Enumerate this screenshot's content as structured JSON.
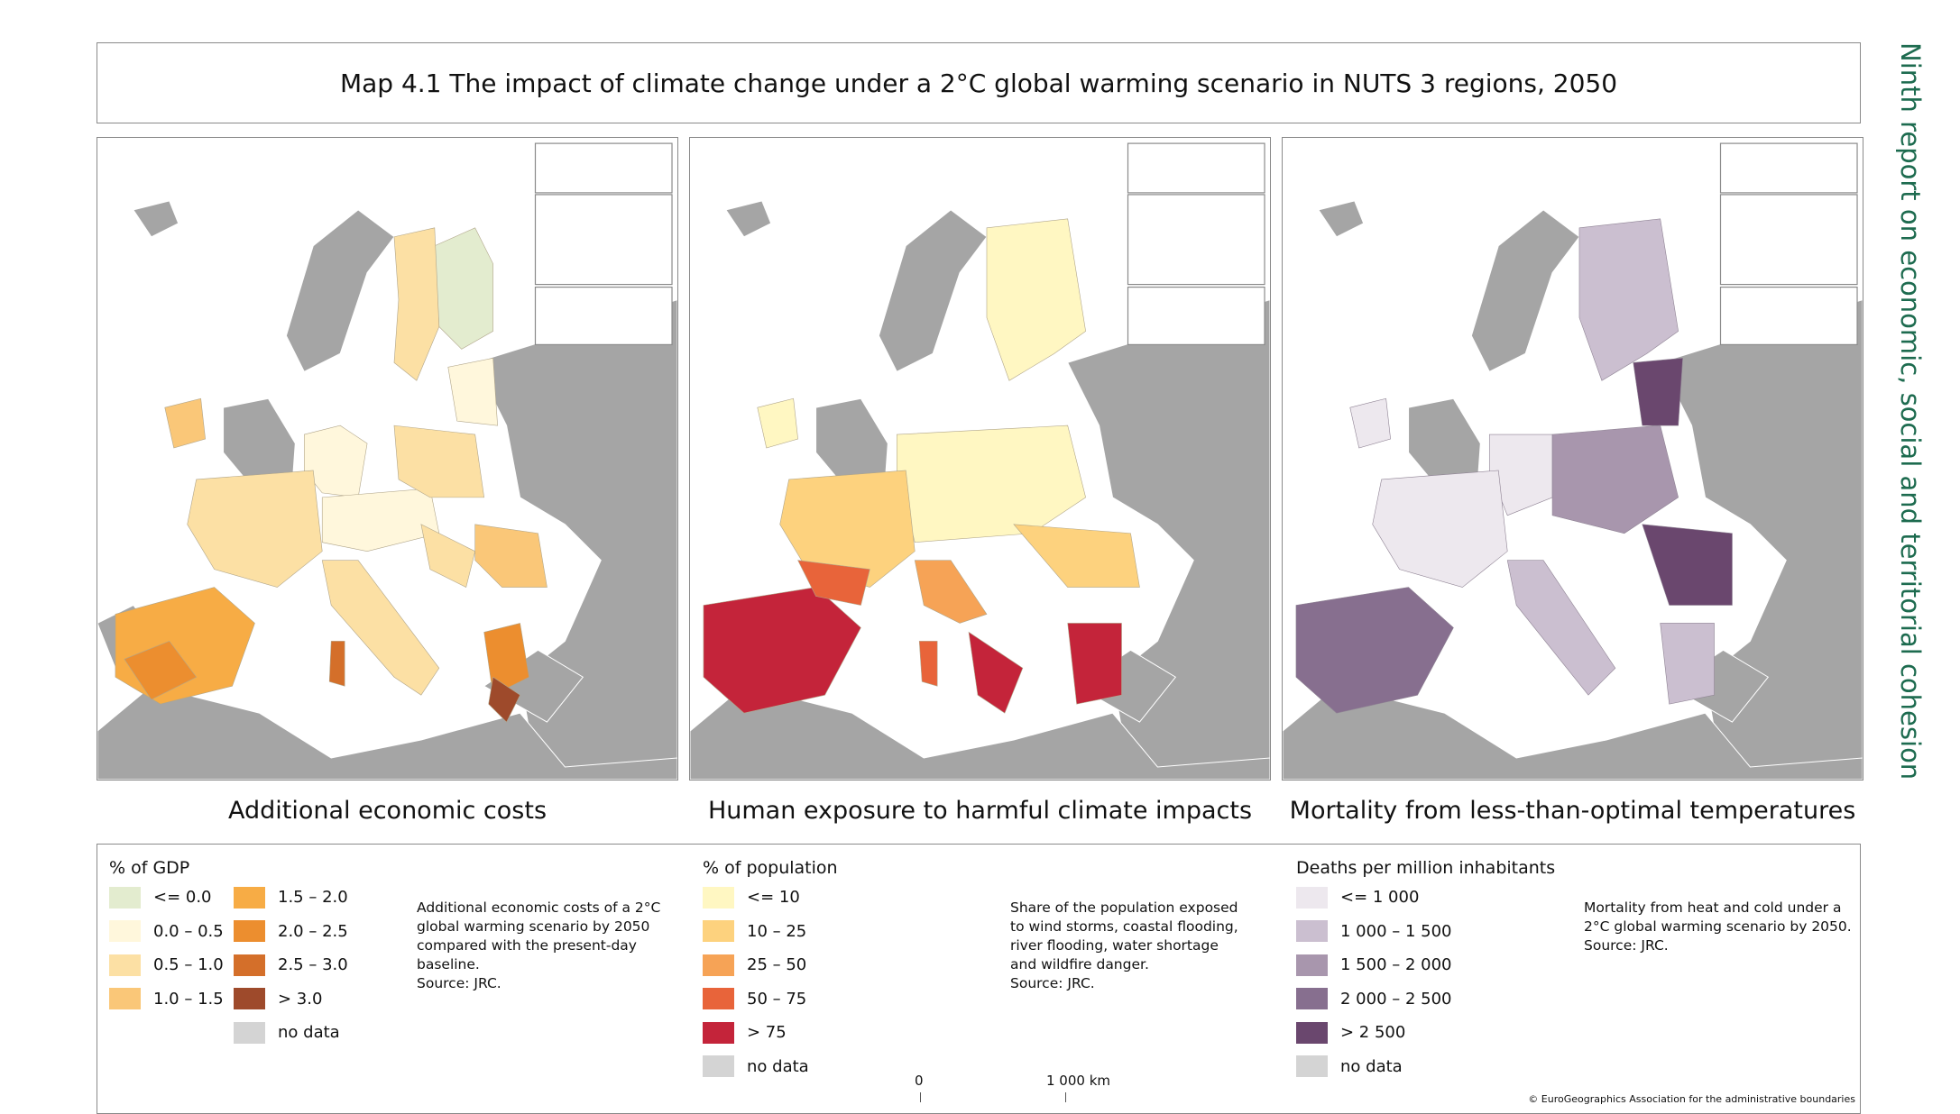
{
  "title": "Map 4.1 The impact of climate change under a 2°C global warming scenario in NUTS 3 regions, 2050",
  "side_title": "Ninth report on economic, social and territorial cohesion",
  "panels": [
    {
      "title": "Additional economic costs",
      "legend_title": "% of GDP",
      "legend_items": [
        {
          "label": "<= 0.0",
          "color": "#e3eccf"
        },
        {
          "label": "0.0 – 0.5",
          "color": "#fff7dc"
        },
        {
          "label": "0.5 – 1.0",
          "color": "#fce0a4"
        },
        {
          "label": "1.0 – 1.5",
          "color": "#fac778"
        },
        {
          "label": "1.5 – 2.0",
          "color": "#f7ac45"
        },
        {
          "label": "2.0 – 2.5",
          "color": "#ec8e2f"
        },
        {
          "label": "2.5 – 3.0",
          "color": "#d46f2a"
        },
        {
          "label": "> 3.0",
          "color": "#9e4a2b"
        },
        {
          "label": "no data",
          "color": "#d4d4d4"
        }
      ],
      "note": "Additional economic costs of a 2°C\nglobal warming scenario by 2050\ncompared with the present-day\nbaseline.\nSource: JRC."
    },
    {
      "title": "Human exposure to harmful climate impacts",
      "legend_title": "% of population",
      "legend_items": [
        {
          "label": "<= 10",
          "color": "#fff7c2"
        },
        {
          "label": "10 – 25",
          "color": "#fdd27e"
        },
        {
          "label": "25 – 50",
          "color": "#f6a356"
        },
        {
          "label": "50 – 75",
          "color": "#e8643a"
        },
        {
          "label": "> 75",
          "color": "#c4243a"
        },
        {
          "label": "no data",
          "color": "#d4d4d4"
        }
      ],
      "note": "Share of the population exposed\nto wind storms, coastal flooding,\nriver flooding, water shortage\nand wildfire danger.\nSource: JRC."
    },
    {
      "title": "Mortality from less-than-optimal temperatures",
      "legend_title": "Deaths per million inhabitants",
      "legend_items": [
        {
          "label": "<= 1 000",
          "color": "#ede8ee"
        },
        {
          "label": "1 000 – 1 500",
          "color": "#cbbfd0"
        },
        {
          "label": "1 500 – 2 000",
          "color": "#a896ad"
        },
        {
          "label": "2 000 – 2 500",
          "color": "#876f8f"
        },
        {
          "label": "> 2 500",
          "color": "#6a476e"
        },
        {
          "label": "no data",
          "color": "#d4d4d4"
        }
      ],
      "note": "Mortality from heat and cold under a\n2°C global warming scenario by 2050.\nSource: JRC."
    }
  ],
  "scale": {
    "start": "0",
    "end": "1 000 km"
  },
  "copyright": "© EuroGeographics Association for the administrative boundaries",
  "colors": {
    "land_outside": "#a5a5a5",
    "sea": "#ffffff",
    "frame": "#8a8a8a",
    "side_title": "#1d6b4f"
  }
}
